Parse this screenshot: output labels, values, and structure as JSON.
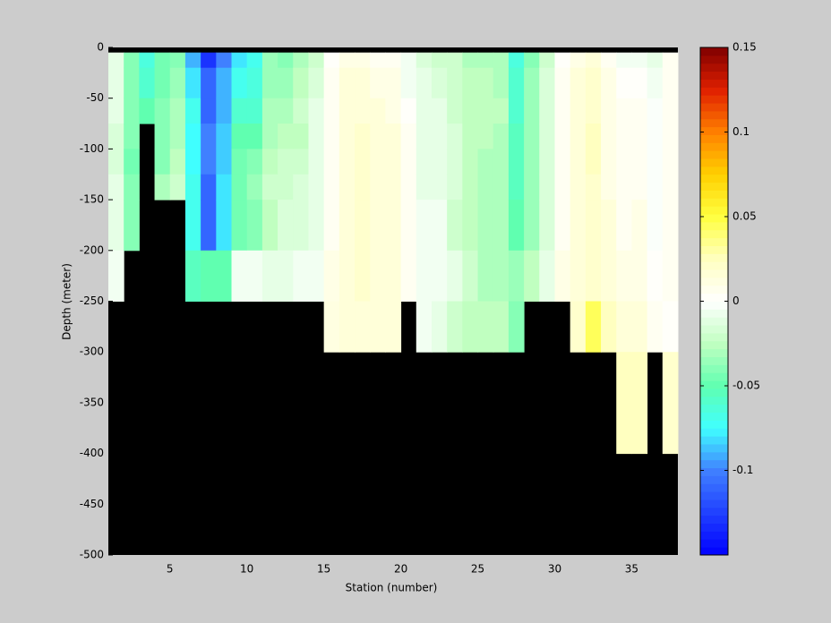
{
  "chart_data": {
    "type": "heatmap",
    "xlabel": "Station (number)",
    "ylabel": "Depth (meter)",
    "x": [
      1,
      2,
      3,
      4,
      5,
      6,
      7,
      8,
      9,
      10,
      11,
      12,
      13,
      14,
      15,
      16,
      17,
      18,
      19,
      20,
      21,
      22,
      23,
      24,
      25,
      26,
      27,
      28,
      29,
      30,
      31,
      32,
      33,
      34,
      35,
      36,
      37,
      38
    ],
    "y": [
      -5,
      -20,
      -50,
      -75,
      -100,
      -125,
      -150,
      -200,
      -250,
      -300,
      -400,
      -500
    ],
    "z": [
      [
        -0.01,
        -0.01,
        -0.01,
        -0.015,
        -0.015,
        -0.01,
        -0.01,
        -0.005,
        null,
        null,
        null
      ],
      [
        -0.04,
        -0.04,
        -0.04,
        -0.04,
        -0.045,
        -0.04,
        -0.04,
        null,
        null,
        null,
        null
      ],
      [
        -0.065,
        -0.06,
        -0.05,
        null,
        null,
        null,
        null,
        null,
        null,
        null,
        null
      ],
      [
        -0.045,
        -0.045,
        -0.04,
        -0.04,
        -0.04,
        -0.03,
        null,
        null,
        null,
        null,
        null
      ],
      [
        -0.04,
        -0.035,
        -0.03,
        -0.03,
        -0.025,
        -0.02,
        null,
        null,
        null,
        null,
        null
      ],
      [
        -0.09,
        -0.08,
        -0.07,
        -0.075,
        -0.075,
        -0.07,
        -0.07,
        -0.055,
        null,
        null,
        null
      ],
      [
        -0.13,
        -0.11,
        -0.11,
        -0.1,
        -0.1,
        -0.11,
        -0.11,
        -0.05,
        null,
        null,
        null
      ],
      [
        -0.1,
        -0.09,
        -0.09,
        -0.085,
        -0.085,
        -0.08,
        -0.08,
        -0.05,
        null,
        null,
        null
      ],
      [
        -0.08,
        -0.07,
        -0.06,
        -0.05,
        -0.045,
        -0.045,
        -0.045,
        -0.005,
        null,
        null,
        null
      ],
      [
        -0.07,
        -0.065,
        -0.06,
        -0.05,
        -0.04,
        -0.035,
        -0.04,
        -0.005,
        null,
        null,
        null
      ],
      [
        -0.035,
        -0.035,
        -0.03,
        -0.03,
        -0.025,
        -0.02,
        -0.025,
        -0.01,
        null,
        null,
        null
      ],
      [
        -0.04,
        -0.035,
        -0.03,
        -0.025,
        -0.02,
        -0.02,
        -0.015,
        -0.01,
        null,
        null,
        null
      ],
      [
        -0.03,
        -0.025,
        -0.02,
        -0.025,
        -0.02,
        -0.015,
        -0.015,
        -0.005,
        null,
        null,
        null
      ],
      [
        -0.02,
        -0.015,
        -0.01,
        -0.01,
        -0.01,
        -0.01,
        -0.01,
        -0.005,
        null,
        null,
        null
      ],
      [
        0.002,
        0.005,
        0.005,
        0.005,
        0.005,
        0.005,
        0.005,
        0.01,
        0.012,
        null,
        null
      ],
      [
        0.01,
        0.015,
        0.015,
        0.015,
        0.015,
        0.015,
        0.015,
        0.015,
        0.015,
        null,
        null
      ],
      [
        0.01,
        0.015,
        0.015,
        0.02,
        0.02,
        0.02,
        0.02,
        0.02,
        0.015,
        null,
        null
      ],
      [
        0.005,
        0.01,
        0.015,
        0.015,
        0.015,
        0.015,
        0.015,
        0.015,
        0.015,
        null,
        null
      ],
      [
        0.005,
        0.01,
        0.01,
        0.015,
        0.015,
        0.015,
        0.015,
        0.015,
        0.015,
        null,
        null
      ],
      [
        -0.005,
        -0.005,
        0.002,
        0.005,
        0.005,
        0.005,
        0.005,
        0.005,
        null,
        null,
        null
      ],
      [
        -0.015,
        -0.01,
        -0.01,
        -0.01,
        -0.01,
        -0.01,
        -0.005,
        -0.005,
        -0.005,
        null,
        null
      ],
      [
        -0.02,
        -0.015,
        -0.01,
        -0.01,
        -0.01,
        -0.01,
        -0.005,
        -0.005,
        -0.01,
        null,
        null
      ],
      [
        -0.02,
        -0.02,
        -0.02,
        -0.015,
        -0.015,
        -0.015,
        -0.02,
        -0.01,
        -0.02,
        null,
        null
      ],
      [
        -0.03,
        -0.025,
        -0.025,
        -0.025,
        -0.025,
        -0.025,
        -0.025,
        -0.02,
        -0.025,
        null,
        null
      ],
      [
        -0.03,
        -0.025,
        -0.025,
        -0.025,
        -0.03,
        -0.03,
        -0.03,
        -0.03,
        -0.025,
        null,
        null
      ],
      [
        -0.03,
        -0.03,
        -0.025,
        -0.03,
        -0.03,
        -0.03,
        -0.03,
        -0.03,
        -0.025,
        null,
        null
      ],
      [
        -0.065,
        -0.06,
        -0.06,
        -0.055,
        -0.055,
        -0.055,
        -0.05,
        -0.035,
        -0.04,
        null,
        null
      ],
      [
        -0.04,
        -0.035,
        -0.035,
        -0.035,
        -0.035,
        -0.035,
        -0.035,
        -0.025,
        null,
        null,
        null
      ],
      [
        -0.02,
        -0.015,
        -0.015,
        -0.015,
        -0.015,
        -0.015,
        -0.015,
        -0.01,
        null,
        null,
        null
      ],
      [
        0.002,
        0.005,
        0.005,
        0.005,
        0.005,
        0.005,
        0.005,
        0.01,
        null,
        null,
        null
      ],
      [
        0.01,
        0.015,
        0.015,
        0.015,
        0.015,
        0.015,
        0.015,
        0.015,
        0.02,
        null,
        null
      ],
      [
        0.015,
        0.02,
        0.02,
        0.025,
        0.025,
        0.02,
        0.02,
        0.02,
        0.045,
        null,
        null
      ],
      [
        0.005,
        0.01,
        0.01,
        0.01,
        0.01,
        0.01,
        0.015,
        0.015,
        0.025,
        null,
        null
      ],
      [
        -0.005,
        0.002,
        0.005,
        0.005,
        0.005,
        0.005,
        0.005,
        0.01,
        0.015,
        0.025,
        null
      ],
      [
        -0.005,
        0.002,
        0.005,
        0.005,
        0.005,
        0.005,
        0.01,
        0.01,
        0.015,
        0.025,
        null
      ],
      [
        -0.01,
        -0.005,
        -0.002,
        -0.002,
        -0.002,
        -0.002,
        -0.002,
        0.002,
        0.005,
        null,
        null
      ],
      [
        0.005,
        0.005,
        0.005,
        0.005,
        0.005,
        0.005,
        0.005,
        0.005,
        0.002,
        0.02,
        null
      ]
    ],
    "xlim": [
      1,
      38
    ],
    "ylim": [
      -500,
      0
    ],
    "xticks": [
      5,
      10,
      15,
      20,
      25,
      30,
      35
    ],
    "yticks": [
      -500,
      -450,
      -400,
      -350,
      -300,
      -250,
      -200,
      -150,
      -100,
      -50,
      0
    ],
    "clim": [
      -0.15,
      0.15
    ],
    "cticks": [
      -0.1,
      -0.05,
      0,
      0.05,
      0.1,
      0.15
    ],
    "colormap": [
      "#0000ff",
      "#2040ff",
      "#4080ff",
      "#40ffff",
      "#60ffb0",
      "#c0ffc0",
      "#ffffff",
      "#ffffc0",
      "#ffff40",
      "#ffd000",
      "#ff8000",
      "#e02000",
      "#800000"
    ],
    "missing_color": "#000000"
  }
}
